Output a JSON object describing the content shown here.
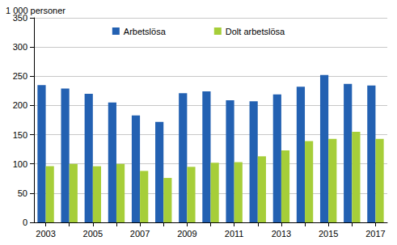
{
  "chart_data": {
    "type": "bar",
    "ylabel": "1 000 personer",
    "categories": [
      "2003",
      null,
      "2005",
      null,
      "2007",
      null,
      "2009",
      null,
      "2011",
      null,
      "2013",
      null,
      "2015",
      null,
      "2017"
    ],
    "series": [
      {
        "name": "Arbetslösa",
        "color": "#2361b2",
        "values": [
          235,
          229,
          220,
          205,
          183,
          172,
          221,
          224,
          209,
          207,
          219,
          232,
          252,
          237,
          234
        ]
      },
      {
        "name": "Dolt arbetslösa",
        "color": "#a6ce39",
        "values": [
          96,
          100,
          96,
          100,
          88,
          76,
          95,
          102,
          103,
          113,
          123,
          139,
          143,
          155,
          143
        ]
      }
    ],
    "ylim": [
      0,
      350
    ],
    "yticks": [
      0,
      50,
      100,
      150,
      200,
      250,
      300,
      350
    ],
    "grid": true,
    "legend": "top"
  }
}
